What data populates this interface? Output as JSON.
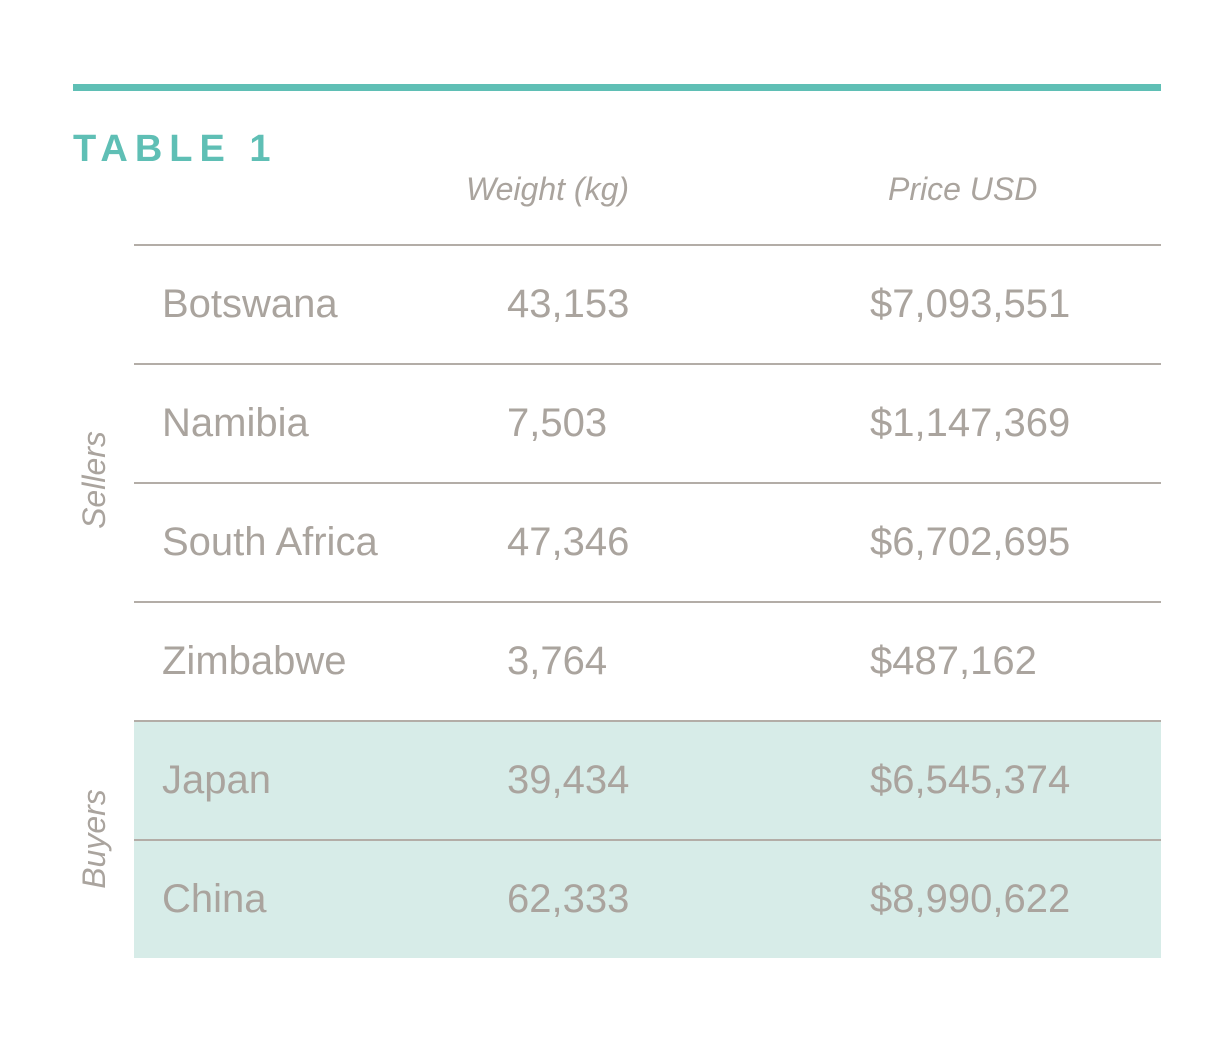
{
  "title": "TABLE 1",
  "columns": {
    "weight": "Weight (kg)",
    "price": "Price USD"
  },
  "groups": {
    "sellers": "Sellers",
    "buyers": "Buyers"
  },
  "rows": [
    {
      "country": "Botswana",
      "weight": "43,153",
      "price": "$7,093,551",
      "group": "sellers"
    },
    {
      "country": "Namibia",
      "weight": "7,503",
      "price": "$1,147,369",
      "group": "sellers"
    },
    {
      "country": "South Africa",
      "weight": "47,346",
      "price": "$6,702,695",
      "group": "sellers"
    },
    {
      "country": "Zimbabwe",
      "weight": "3,764",
      "price": "$487,162",
      "group": "sellers"
    },
    {
      "country": "Japan",
      "weight": "39,434",
      "price": "$6,545,374",
      "group": "buyers"
    },
    {
      "country": "China",
      "weight": "62,333",
      "price": "$8,990,622",
      "group": "buyers"
    }
  ],
  "colors": {
    "accent": "#5fbfb5",
    "buyer_fill": "#d7ece8",
    "text": "#aaa49e",
    "rule": "#b3ada7"
  }
}
